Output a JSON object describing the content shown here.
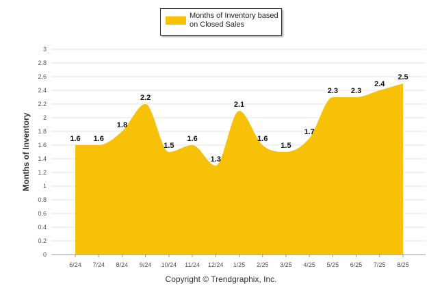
{
  "chart_data": {
    "type": "area",
    "categories": [
      "6/24",
      "7/24",
      "8/24",
      "9/24",
      "10/24",
      "11/24",
      "12/24",
      "1/25",
      "2/25",
      "3/25",
      "4/25",
      "5/25",
      "6/25",
      "7/25",
      "8/25"
    ],
    "series": [
      {
        "name": "Months of Inventory based on Closed Sales",
        "values": [
          1.6,
          1.6,
          1.8,
          2.2,
          1.5,
          1.6,
          1.3,
          2.1,
          1.6,
          1.5,
          1.7,
          2.3,
          2.3,
          2.4,
          2.5
        ]
      }
    ],
    "ylabel": "Months of Inventory",
    "ylim": [
      0,
      3
    ],
    "yticks": [
      "0",
      "0.2",
      "0.4",
      "0.6",
      "0.8",
      "1",
      "1.2",
      "1.4",
      "1.6",
      "1.8",
      "2",
      "2.2",
      "2.4",
      "2.6",
      "2.8",
      "3"
    ],
    "grid": true,
    "legend_position": "top-center",
    "data_labels": [
      "1.6",
      "1.6",
      "1.8",
      "2.2",
      "1.5",
      "1.6",
      "1.3",
      "2.1",
      "1.6",
      "1.5",
      "1.7",
      "2.3",
      "2.3",
      "2.4",
      "2.5"
    ]
  },
  "colors": {
    "area_fill": "#F7C108",
    "grid": "#e6e6e6",
    "axis": "#999999",
    "text": "#333333"
  },
  "footer": {
    "copyright": "Copyright © Trendgraphix, Inc."
  }
}
